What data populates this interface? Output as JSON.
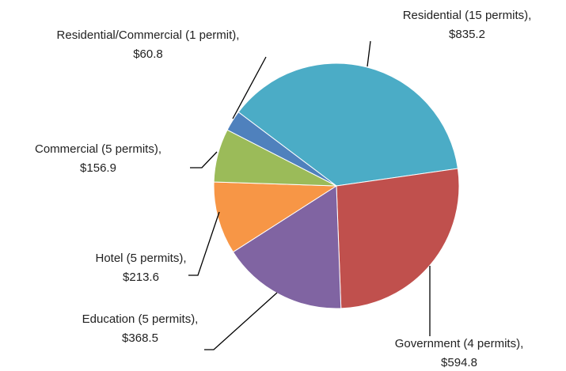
{
  "chart_data": {
    "type": "pie",
    "categories": [
      "Residential (15 permits),",
      "Government (4 permits),",
      "Education (5 permits),",
      "Hotel (5 permits),",
      "Commercial (5 permits),",
      "Residential/Commercial (1 permit),"
    ],
    "values": [
      835.2,
      594.8,
      368.5,
      213.6,
      156.9,
      60.8
    ],
    "value_labels": [
      "$835.2",
      "$594.8",
      "$368.5",
      "$213.6",
      "$156.9",
      "$60.8"
    ],
    "colors": [
      "#4bacc6",
      "#c0504d",
      "#8064a2",
      "#f79646",
      "#9bbb59",
      "#4f81bd"
    ]
  }
}
